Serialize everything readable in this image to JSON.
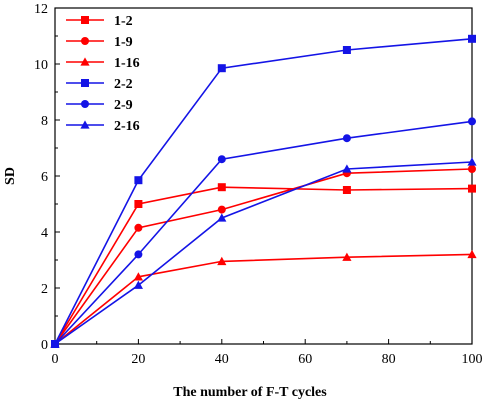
{
  "chart_data": {
    "type": "line",
    "x": [
      0,
      20,
      40,
      70,
      100
    ],
    "xlabel": "The number of F-T cycles",
    "ylabel": "SD",
    "xlim": [
      0,
      100
    ],
    "ylim": [
      0,
      12
    ],
    "xticks": [
      "0",
      "20",
      "40",
      "60",
      "80",
      "100"
    ],
    "yticks": [
      "0",
      "2",
      "4",
      "6",
      "8",
      "10",
      "12"
    ],
    "grid": false,
    "legend_position": "top-left",
    "series": [
      {
        "name": "1-2",
        "color": "#ff0000",
        "marker": "square",
        "values": [
          0,
          5.0,
          5.6,
          5.5,
          5.55
        ]
      },
      {
        "name": "1-9",
        "color": "#ff0000",
        "marker": "circle",
        "values": [
          0,
          4.15,
          4.8,
          6.1,
          6.25
        ]
      },
      {
        "name": "1-16",
        "color": "#ff0000",
        "marker": "triangle",
        "values": [
          0,
          2.4,
          2.95,
          3.1,
          3.2
        ]
      },
      {
        "name": "2-2",
        "color": "#1414e6",
        "marker": "square",
        "values": [
          0,
          5.85,
          9.85,
          10.5,
          10.9
        ]
      },
      {
        "name": "2-9",
        "color": "#1414e6",
        "marker": "circle",
        "values": [
          0,
          3.2,
          6.6,
          7.35,
          7.95
        ]
      },
      {
        "name": "2-16",
        "color": "#1414e6",
        "marker": "triangle",
        "values": [
          0,
          2.1,
          4.5,
          6.25,
          6.5
        ]
      }
    ]
  }
}
